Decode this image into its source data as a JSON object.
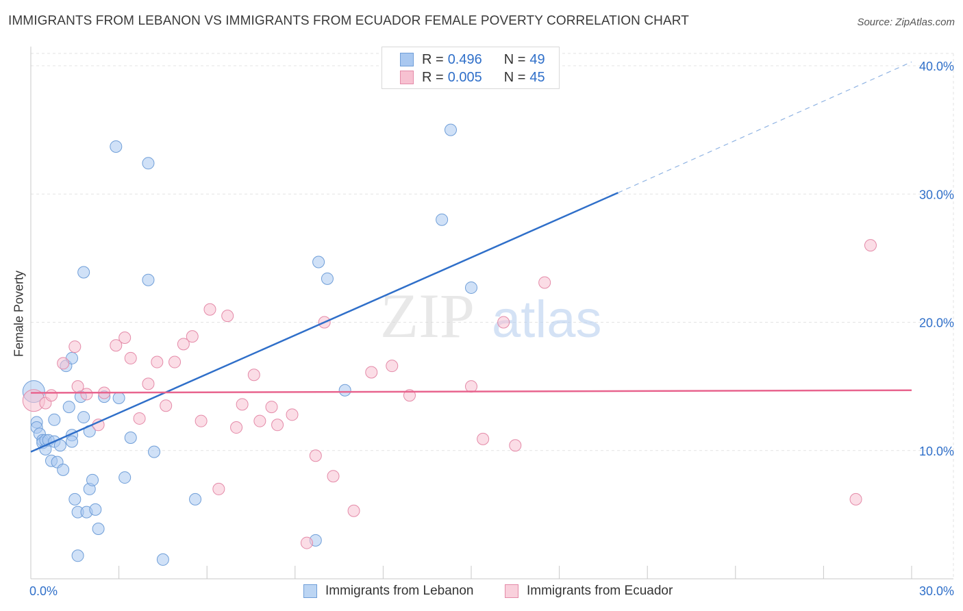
{
  "header": {
    "title": "IMMIGRANTS FROM LEBANON VS IMMIGRANTS FROM ECUADOR FEMALE POVERTY CORRELATION CHART",
    "source": "Source: ZipAtlas.com"
  },
  "stats_legend": {
    "r_label": "R =",
    "n_label": "N =",
    "rows": [
      {
        "r": "0.496",
        "n": "49",
        "color": "#a9c8f0",
        "border": "#6f9ed8"
      },
      {
        "r": "0.005",
        "n": "45",
        "color": "#f7c1d1",
        "border": "#e48aa8"
      }
    ]
  },
  "watermark": {
    "zip": "ZIP",
    "atlas": "atlas"
  },
  "chart_data": {
    "type": "scatter",
    "title": "IMMIGRANTS FROM LEBANON VS IMMIGRANTS FROM ECUADOR FEMALE POVERTY CORRELATION CHART",
    "xlabel": "",
    "ylabel": "Female Poverty",
    "xlim": [
      0,
      30
    ],
    "ylim": [
      0,
      40
    ],
    "x_tick_labels": [
      "0.0%",
      "30.0%"
    ],
    "y_ticks": [
      10,
      20,
      30,
      40
    ],
    "y_tick_labels": [
      "10.0%",
      "20.0%",
      "30.0%",
      "40.0%"
    ],
    "grid": true,
    "legend_position": "bottom",
    "series": [
      {
        "name": "Immigrants from Lebanon",
        "color": "#a9c8f0",
        "stroke": "#6f9ed8",
        "trend_color": "#2f6fc9",
        "trend": {
          "x0": 0,
          "y0": 9.9,
          "x1": 20,
          "y1": 30.1,
          "dashed_to_x": 30,
          "dashed_to_y": 40.3
        },
        "points": [
          [
            0.1,
            14.6
          ],
          [
            0.2,
            12.2
          ],
          [
            0.2,
            11.8
          ],
          [
            0.3,
            11.3
          ],
          [
            0.4,
            10.8
          ],
          [
            0.4,
            10.6
          ],
          [
            0.5,
            10.1
          ],
          [
            0.5,
            10.8
          ],
          [
            0.6,
            10.8
          ],
          [
            0.7,
            9.2
          ],
          [
            0.8,
            10.7
          ],
          [
            0.8,
            12.4
          ],
          [
            0.9,
            9.1
          ],
          [
            1.0,
            10.4
          ],
          [
            1.1,
            8.5
          ],
          [
            1.2,
            16.6
          ],
          [
            1.3,
            13.4
          ],
          [
            1.4,
            11.2
          ],
          [
            1.4,
            10.7
          ],
          [
            1.4,
            17.2
          ],
          [
            1.5,
            6.2
          ],
          [
            1.6,
            5.2
          ],
          [
            1.6,
            1.8
          ],
          [
            1.7,
            14.2
          ],
          [
            1.8,
            12.6
          ],
          [
            1.8,
            23.9
          ],
          [
            1.9,
            5.2
          ],
          [
            2.0,
            11.5
          ],
          [
            2.0,
            7.0
          ],
          [
            2.1,
            7.7
          ],
          [
            2.2,
            5.4
          ],
          [
            2.3,
            3.9
          ],
          [
            2.5,
            14.2
          ],
          [
            2.9,
            33.7
          ],
          [
            3.0,
            14.1
          ],
          [
            3.2,
            7.9
          ],
          [
            3.4,
            11.0
          ],
          [
            4.0,
            32.4
          ],
          [
            4.0,
            23.3
          ],
          [
            4.2,
            9.9
          ],
          [
            4.5,
            1.5
          ],
          [
            5.6,
            6.2
          ],
          [
            9.7,
            3.0
          ],
          [
            9.8,
            24.7
          ],
          [
            10.1,
            23.4
          ],
          [
            10.7,
            14.7
          ],
          [
            14.0,
            28.0
          ],
          [
            14.3,
            35.0
          ],
          [
            15.0,
            22.7
          ]
        ]
      },
      {
        "name": "Immigrants from Ecuador",
        "color": "#f7c1d1",
        "stroke": "#e48aa8",
        "trend_color": "#e8648e",
        "trend": {
          "x0": 0,
          "y0": 14.5,
          "x1": 30,
          "y1": 14.7
        },
        "points": [
          [
            0.1,
            13.9
          ],
          [
            0.5,
            13.7
          ],
          [
            0.7,
            14.3
          ],
          [
            1.1,
            16.8
          ],
          [
            1.5,
            18.1
          ],
          [
            1.6,
            15.0
          ],
          [
            1.9,
            14.4
          ],
          [
            2.3,
            12.0
          ],
          [
            2.5,
            14.5
          ],
          [
            2.9,
            18.2
          ],
          [
            3.2,
            18.8
          ],
          [
            3.4,
            17.2
          ],
          [
            3.7,
            12.5
          ],
          [
            4.0,
            15.2
          ],
          [
            4.3,
            16.9
          ],
          [
            4.6,
            13.5
          ],
          [
            4.9,
            16.9
          ],
          [
            5.2,
            18.3
          ],
          [
            5.5,
            18.9
          ],
          [
            5.8,
            12.3
          ],
          [
            6.1,
            21.0
          ],
          [
            6.4,
            7.0
          ],
          [
            6.7,
            20.5
          ],
          [
            7.0,
            11.8
          ],
          [
            7.2,
            13.6
          ],
          [
            7.6,
            15.9
          ],
          [
            7.8,
            12.3
          ],
          [
            8.2,
            13.4
          ],
          [
            8.4,
            12.0
          ],
          [
            8.9,
            12.8
          ],
          [
            9.4,
            2.8
          ],
          [
            9.7,
            9.6
          ],
          [
            10.0,
            20.0
          ],
          [
            10.3,
            8.0
          ],
          [
            11.0,
            5.3
          ],
          [
            11.6,
            16.1
          ],
          [
            12.3,
            16.6
          ],
          [
            12.9,
            14.3
          ],
          [
            15.0,
            15.0
          ],
          [
            15.4,
            10.9
          ],
          [
            16.1,
            20.0
          ],
          [
            16.5,
            10.4
          ],
          [
            17.5,
            23.1
          ],
          [
            28.1,
            6.2
          ],
          [
            28.6,
            26.0
          ]
        ]
      }
    ]
  }
}
